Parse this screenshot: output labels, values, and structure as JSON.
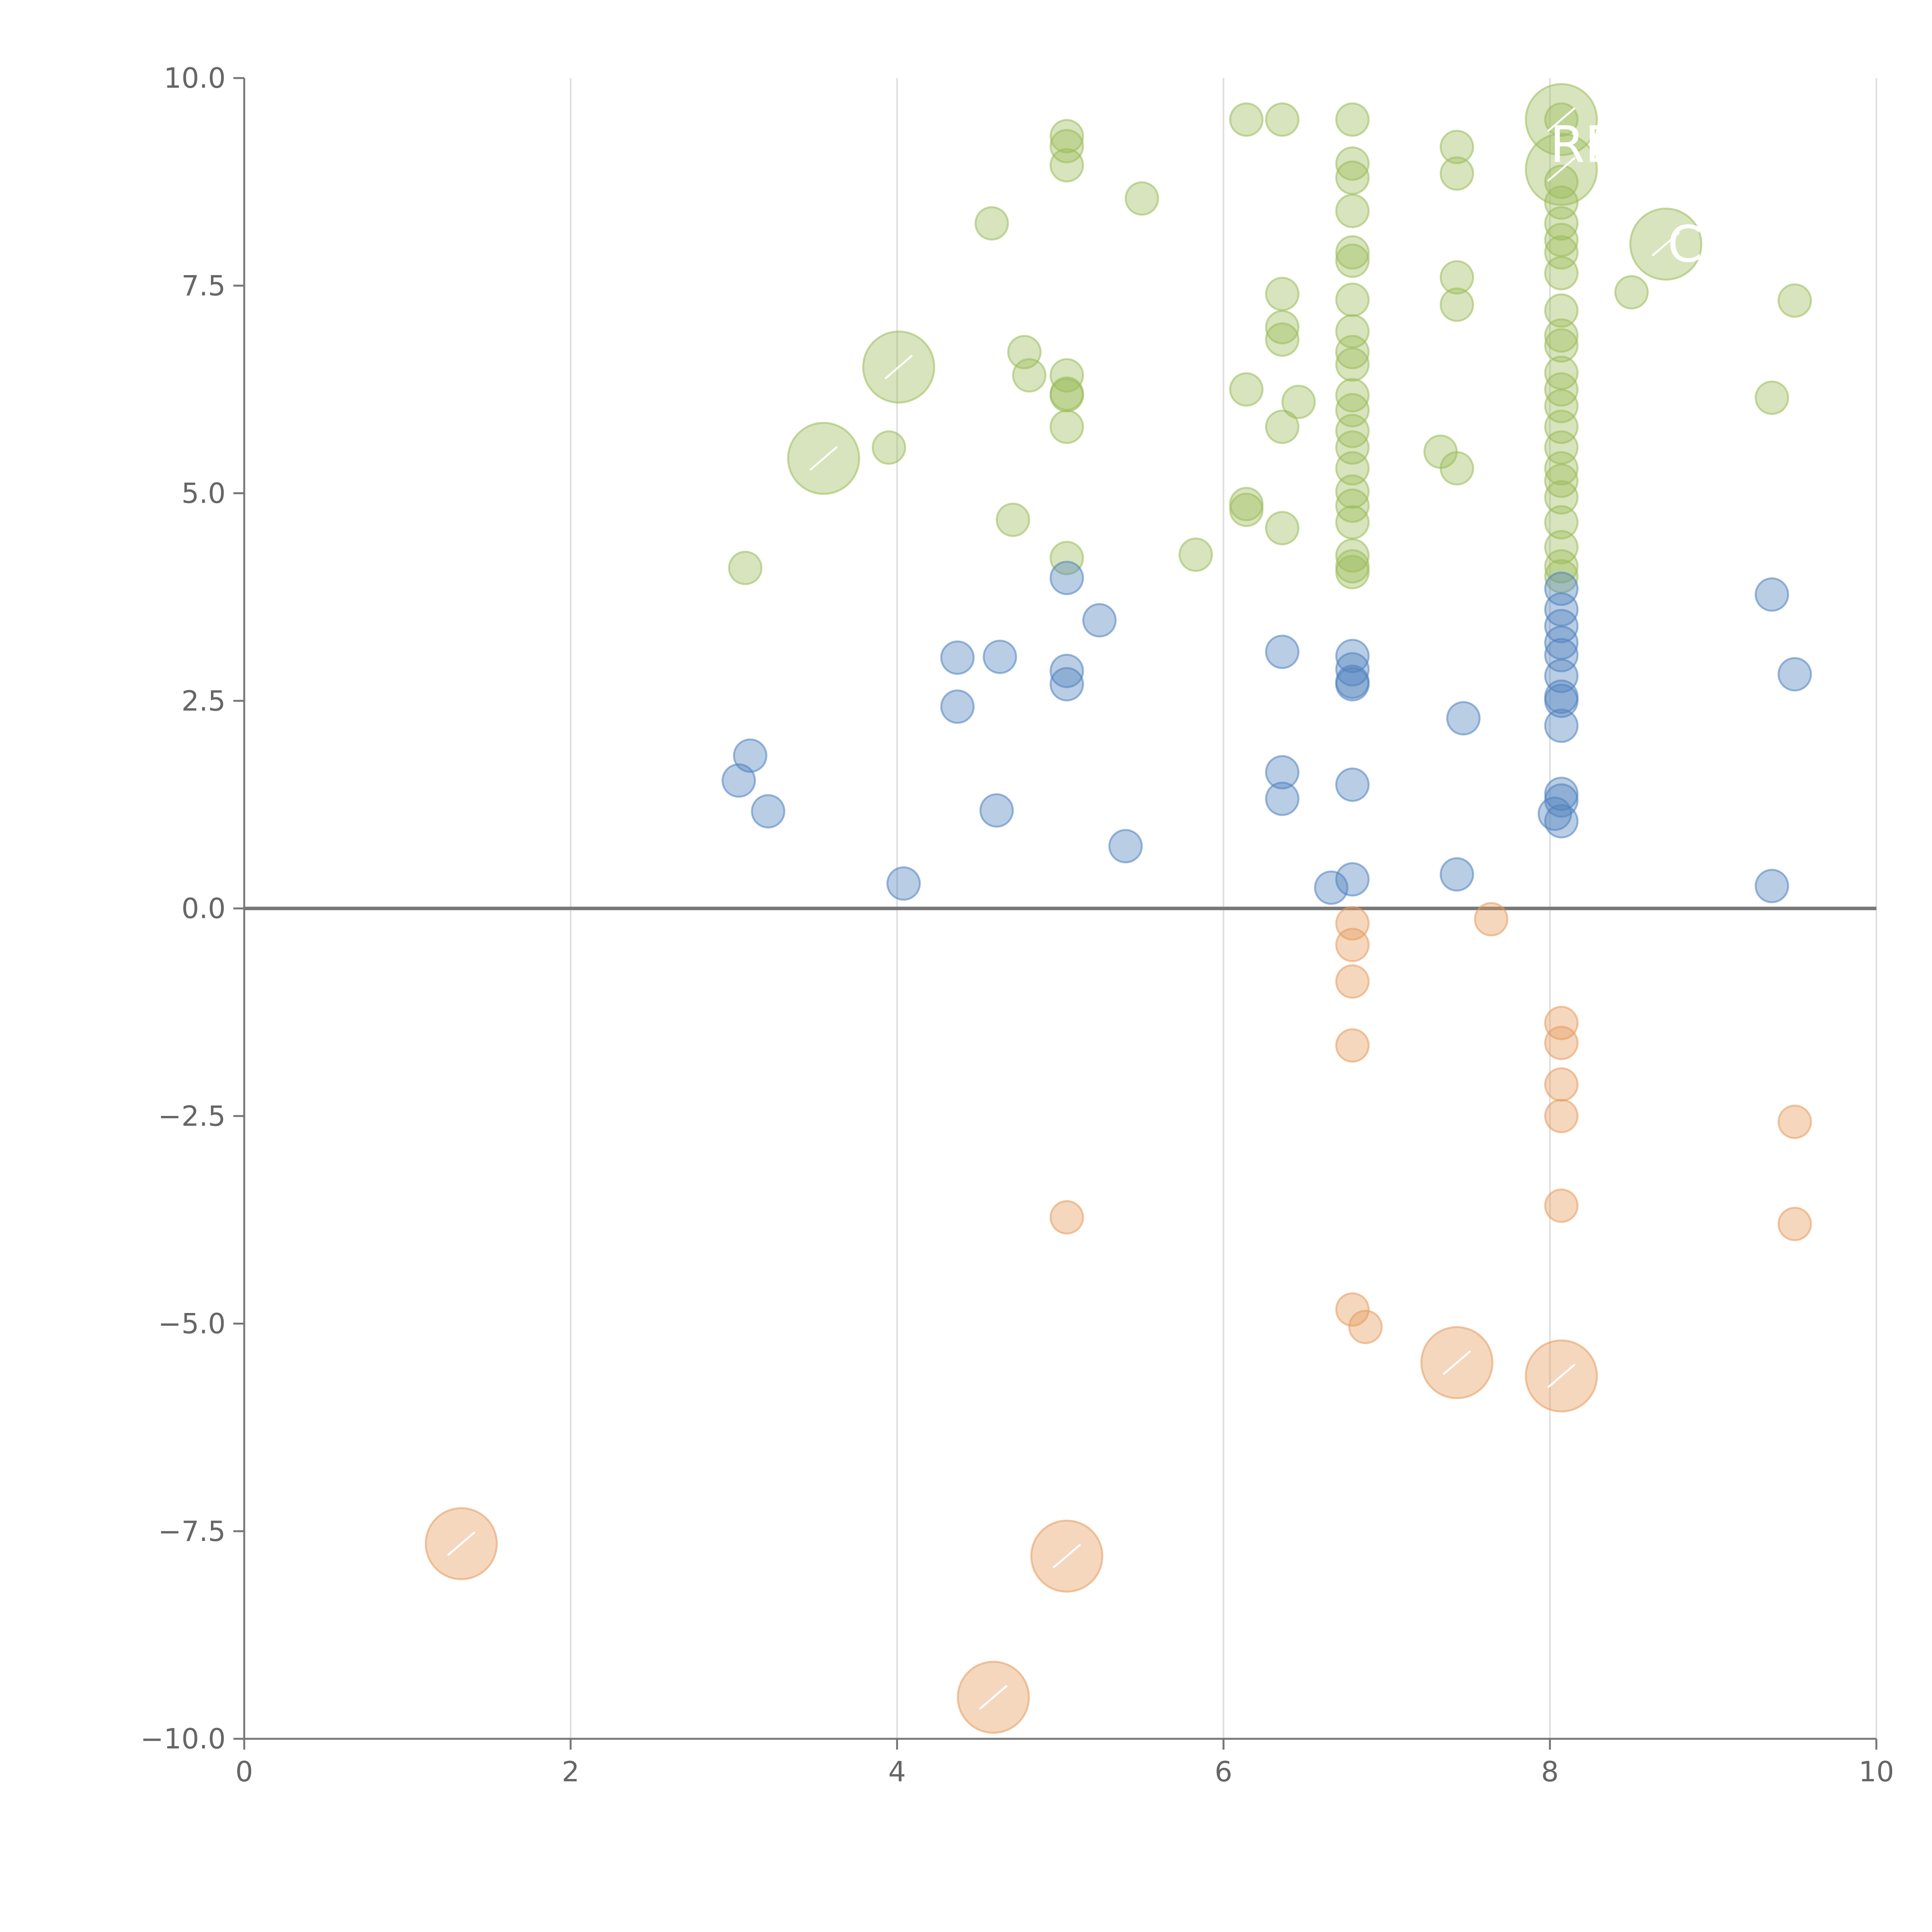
{
  "chart_data": {
    "type": "scatter",
    "title": "",
    "xlabel": "",
    "ylabel": "",
    "xlim": [
      0,
      10
    ],
    "ylim": [
      -10,
      10
    ],
    "x_ticks": [
      "0",
      "2",
      "4",
      "6",
      "8",
      "10"
    ],
    "y_ticks": [
      "−10.0",
      "−7.5",
      "−5.0",
      "−2.5",
      "0.0",
      "2.5",
      "5.0",
      "7.5",
      "10.0"
    ],
    "x_tick_values": [
      0,
      2,
      4,
      6,
      8,
      10
    ],
    "y_tick_values": [
      -10,
      -7.5,
      -5,
      -2.5,
      0,
      2.5,
      5,
      7.5,
      10
    ],
    "grid": "vertical",
    "colors": {
      "green": "#9BBB59",
      "blue": "#4F81BD",
      "orange": "#E69A5C",
      "axis": "#777777",
      "grid": "#dddddd"
    },
    "series": [
      {
        "name": "green",
        "color": "#9BBB59",
        "points": [
          [
            3.07,
            4.1
          ],
          [
            3.95,
            5.55
          ],
          [
            4.58,
            8.25
          ],
          [
            4.71,
            4.68
          ],
          [
            4.78,
            6.7
          ],
          [
            4.81,
            6.42
          ],
          [
            5.04,
            9.3
          ],
          [
            5.04,
            9.18
          ],
          [
            5.04,
            8.95
          ],
          [
            5.04,
            6.42
          ],
          [
            5.04,
            6.2
          ],
          [
            5.04,
            6.18
          ],
          [
            5.04,
            5.8
          ],
          [
            5.04,
            4.22
          ],
          [
            5.5,
            8.55
          ],
          [
            5.83,
            4.26
          ],
          [
            6.14,
            9.5
          ],
          [
            6.14,
            6.25
          ],
          [
            6.14,
            4.87
          ],
          [
            6.14,
            4.8
          ],
          [
            6.36,
            9.5
          ],
          [
            6.36,
            7.4
          ],
          [
            6.36,
            7.0
          ],
          [
            6.36,
            6.85
          ],
          [
            6.36,
            5.8
          ],
          [
            6.36,
            4.58
          ],
          [
            6.46,
            6.1
          ],
          [
            6.79,
            9.5
          ],
          [
            6.79,
            8.97
          ],
          [
            6.79,
            8.8
          ],
          [
            6.79,
            8.4
          ],
          [
            6.79,
            7.9
          ],
          [
            6.79,
            7.8
          ],
          [
            6.79,
            7.33
          ],
          [
            6.79,
            6.95
          ],
          [
            6.79,
            6.7
          ],
          [
            6.79,
            6.55
          ],
          [
            6.79,
            6.18
          ],
          [
            6.79,
            6.0
          ],
          [
            6.79,
            5.75
          ],
          [
            6.79,
            5.55
          ],
          [
            6.79,
            5.3
          ],
          [
            6.79,
            5.02
          ],
          [
            6.79,
            4.85
          ],
          [
            6.79,
            4.65
          ],
          [
            6.79,
            4.25
          ],
          [
            6.79,
            4.12
          ],
          [
            6.79,
            4.05
          ],
          [
            7.33,
            5.5
          ],
          [
            7.43,
            9.17
          ],
          [
            7.43,
            8.85
          ],
          [
            7.43,
            7.6
          ],
          [
            7.43,
            7.27
          ],
          [
            7.43,
            5.3
          ],
          [
            8.07,
            9.5
          ],
          [
            8.07,
            8.75
          ],
          [
            8.07,
            8.5
          ],
          [
            8.07,
            8.25
          ],
          [
            8.07,
            8.05
          ],
          [
            8.07,
            7.9
          ],
          [
            8.07,
            7.65
          ],
          [
            8.07,
            7.2
          ],
          [
            8.07,
            6.9
          ],
          [
            8.07,
            6.78
          ],
          [
            8.07,
            6.45
          ],
          [
            8.07,
            6.25
          ],
          [
            8.07,
            6.05
          ],
          [
            8.07,
            5.8
          ],
          [
            8.07,
            5.55
          ],
          [
            8.07,
            5.3
          ],
          [
            8.07,
            5.15
          ],
          [
            8.07,
            4.95
          ],
          [
            8.07,
            4.65
          ],
          [
            8.07,
            4.35
          ],
          [
            8.07,
            4.12
          ],
          [
            8.07,
            4.0
          ],
          [
            8.5,
            7.42
          ],
          [
            9.36,
            6.15
          ],
          [
            9.5,
            7.32
          ]
        ],
        "big": [
          [
            3.55,
            5.42
          ],
          [
            4.01,
            6.52
          ],
          [
            8.07,
            9.5
          ],
          [
            8.07,
            8.9
          ],
          [
            8.71,
            8.0
          ]
        ]
      },
      {
        "name": "blue",
        "color": "#4F81BD",
        "points": [
          [
            3.03,
            1.54
          ],
          [
            3.1,
            1.84
          ],
          [
            3.21,
            1.17
          ],
          [
            4.04,
            0.3
          ],
          [
            4.37,
            3.02
          ],
          [
            4.37,
            2.43
          ],
          [
            4.61,
            1.18
          ],
          [
            4.63,
            3.03
          ],
          [
            5.04,
            3.98
          ],
          [
            5.04,
            2.86
          ],
          [
            5.04,
            2.7
          ],
          [
            5.24,
            3.47
          ],
          [
            5.4,
            0.75
          ],
          [
            6.36,
            3.09
          ],
          [
            6.36,
            1.64
          ],
          [
            6.36,
            1.32
          ],
          [
            6.66,
            0.25
          ],
          [
            6.79,
            3.04
          ],
          [
            6.79,
            2.88
          ],
          [
            6.79,
            2.73
          ],
          [
            6.79,
            2.7
          ],
          [
            6.79,
            1.49
          ],
          [
            6.79,
            0.35
          ],
          [
            7.43,
            0.41
          ],
          [
            7.47,
            2.29
          ],
          [
            8.03,
            1.14
          ],
          [
            8.07,
            3.85
          ],
          [
            8.07,
            3.6
          ],
          [
            8.07,
            3.4
          ],
          [
            8.07,
            3.2
          ],
          [
            8.07,
            3.05
          ],
          [
            8.07,
            2.8
          ],
          [
            8.07,
            2.55
          ],
          [
            8.07,
            2.5
          ],
          [
            8.07,
            2.2
          ],
          [
            8.07,
            1.38
          ],
          [
            8.07,
            1.3
          ],
          [
            8.07,
            1.05
          ],
          [
            9.36,
            3.78
          ],
          [
            9.36,
            0.27
          ],
          [
            9.5,
            2.82
          ]
        ],
        "big": []
      },
      {
        "name": "orange",
        "color": "#E69A5C",
        "points": [
          [
            5.04,
            -3.72
          ],
          [
            6.79,
            -0.18
          ],
          [
            6.79,
            -0.44
          ],
          [
            6.79,
            -0.88
          ],
          [
            6.79,
            -1.65
          ],
          [
            6.79,
            -4.83
          ],
          [
            6.87,
            -5.04
          ],
          [
            7.64,
            -0.13
          ],
          [
            8.07,
            -1.38
          ],
          [
            8.07,
            -1.62
          ],
          [
            8.07,
            -2.12
          ],
          [
            8.07,
            -2.5
          ],
          [
            8.07,
            -3.58
          ],
          [
            9.5,
            -2.57
          ],
          [
            9.5,
            -3.8
          ]
        ],
        "big": [
          [
            1.33,
            -7.65
          ],
          [
            4.59,
            -9.5
          ],
          [
            5.04,
            -7.8
          ],
          [
            7.43,
            -5.47
          ],
          [
            8.07,
            -5.63
          ]
        ]
      }
    ],
    "point_labels": [
      {
        "text": "RE",
        "x": 8.0,
        "y": 9.2,
        "align": "start"
      },
      {
        "text": "C",
        "x": 8.72,
        "y": 8.0,
        "align": "start"
      }
    ]
  }
}
